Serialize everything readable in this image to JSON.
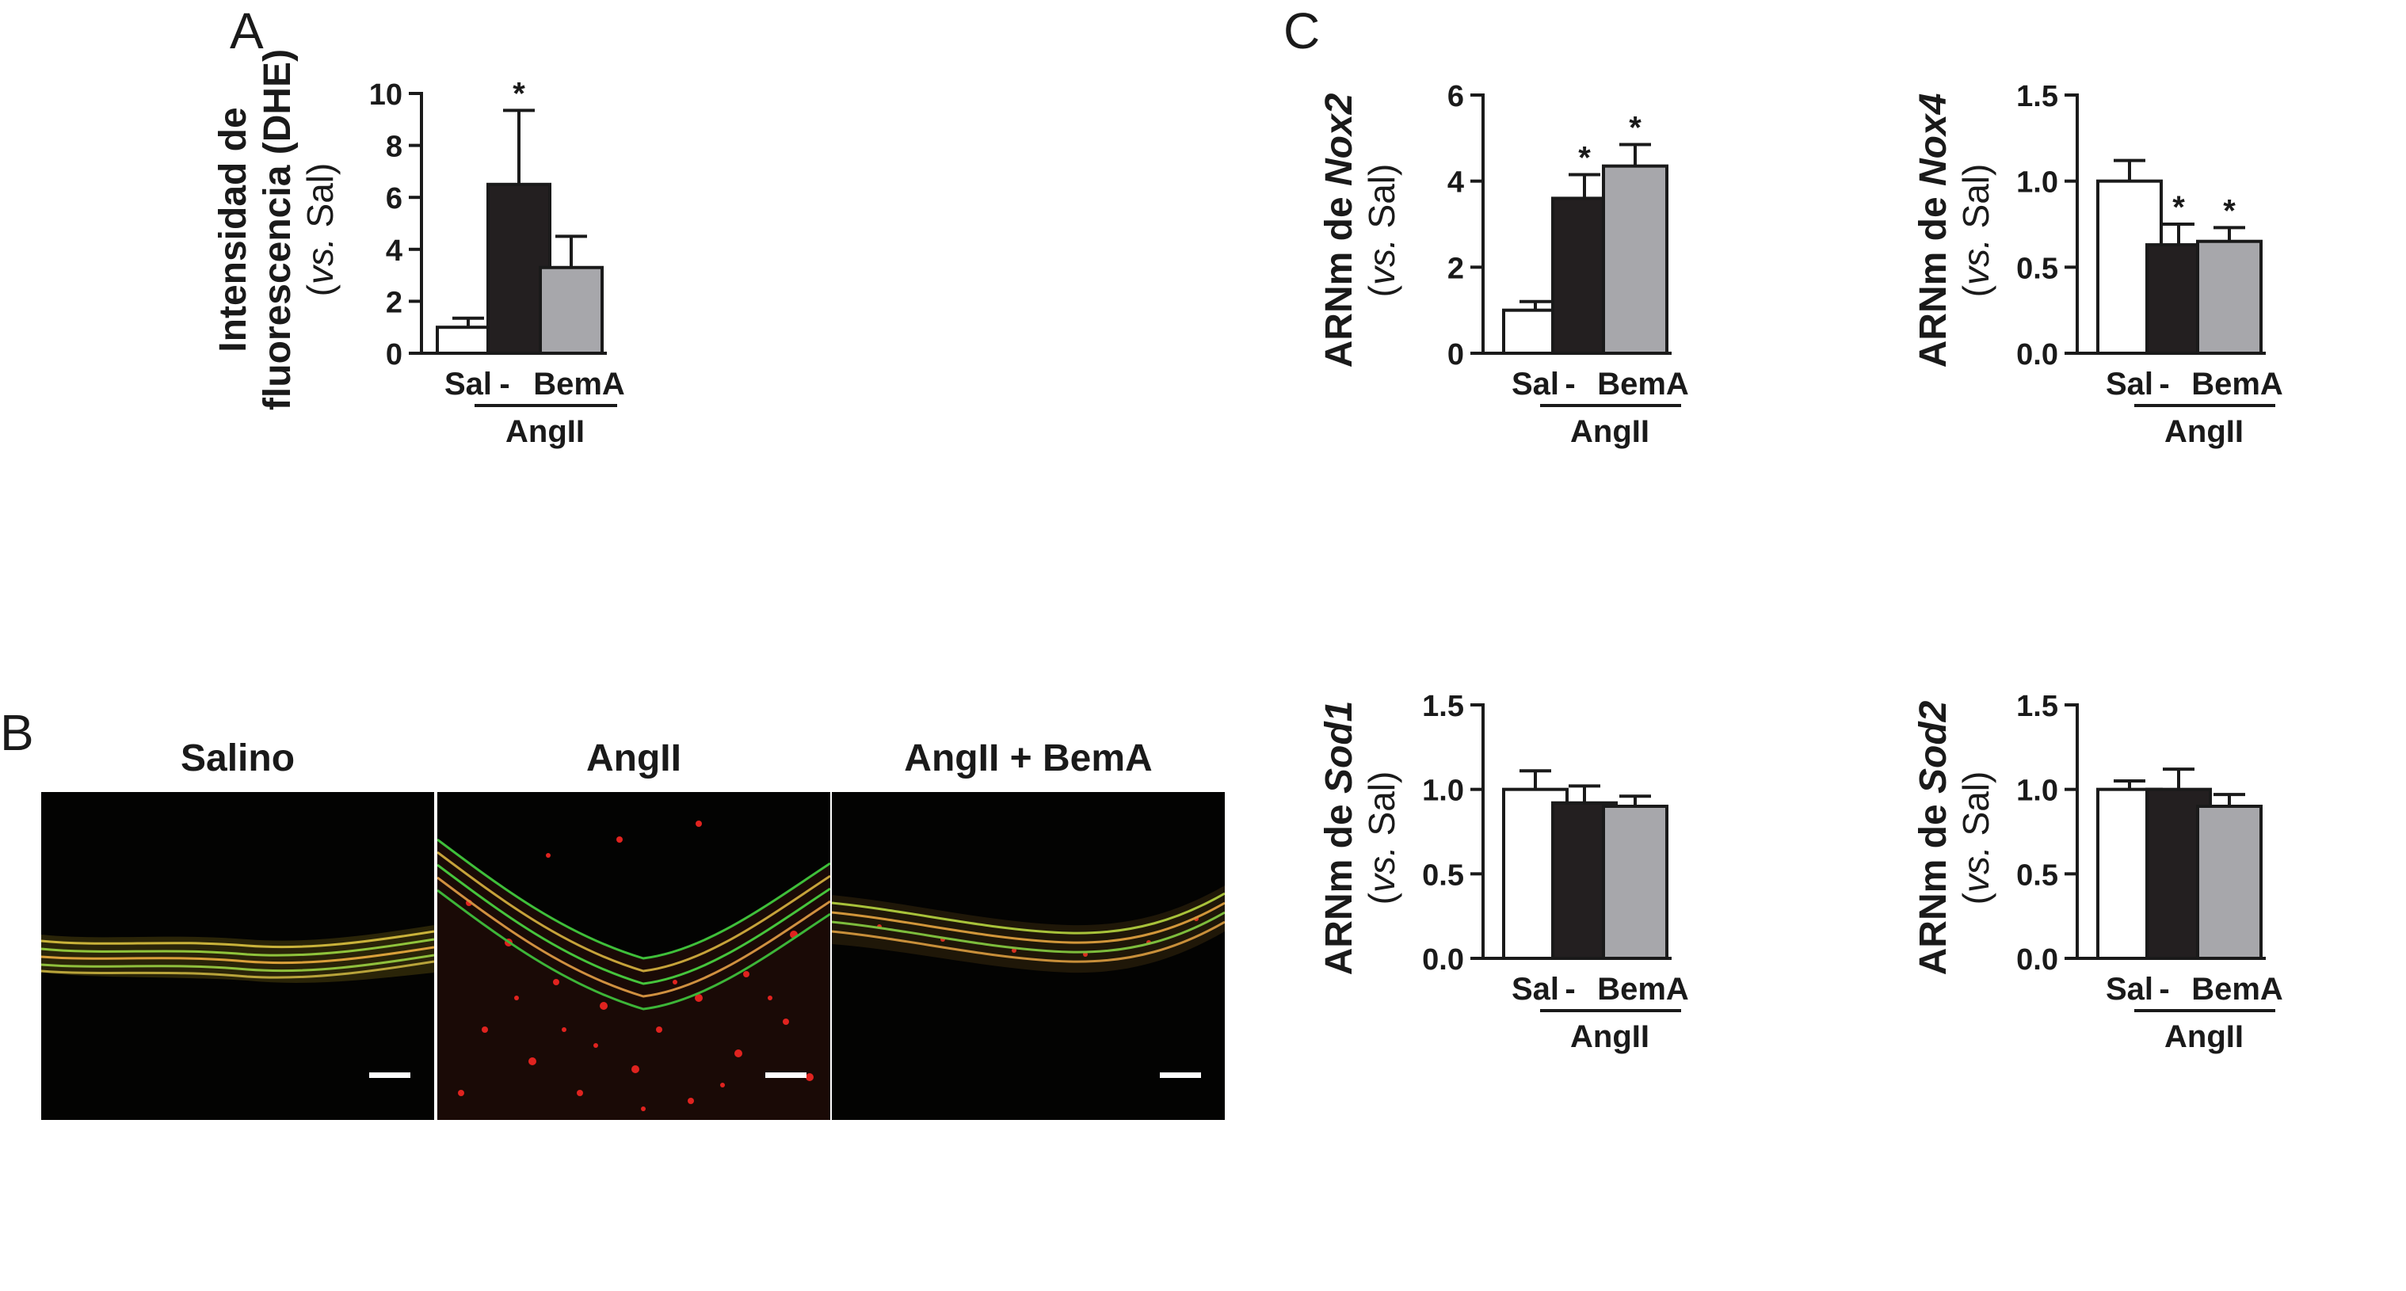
{
  "panels": {
    "a": "A",
    "b": "B",
    "c": "C"
  },
  "colors": {
    "sal": "#ffffff",
    "angii": "#231f20",
    "bema": "#a7a7ab",
    "axis": "#1a1a1a"
  },
  "images": [
    {
      "title": "Salino"
    },
    {
      "title": "AngII"
    },
    {
      "title": "AngII + BemA"
    }
  ],
  "chart_data": [
    {
      "type": "bar",
      "panel": "A",
      "ylabel_line1": "Intensidad de",
      "ylabel_line2": "fluorescencia (DHE)",
      "ylabel_line3_italic": "vs.",
      "ylabel_line3_rest": " Sal)",
      "ylabel_line3_open": "(",
      "categories": [
        "Sal",
        "-",
        "BemA"
      ],
      "group_label": "AngII",
      "values": [
        1.0,
        6.5,
        3.3
      ],
      "errors": [
        0.35,
        2.85,
        1.2
      ],
      "significance": [
        "",
        "*",
        ""
      ],
      "ylim": [
        0,
        10
      ],
      "yticks": [
        "0",
        "2",
        "4",
        "6",
        "8",
        "10"
      ]
    },
    {
      "type": "bar",
      "panel": "C",
      "ylabel_prefix": "ARNm de ",
      "gene": "Nox2",
      "ylabel_line2_open": "(",
      "ylabel_line2_italic": "vs.",
      "ylabel_line2_rest": " Sal)",
      "categories": [
        "Sal",
        "-",
        "BemA"
      ],
      "group_label": "AngII",
      "values": [
        1.0,
        3.6,
        4.35
      ],
      "errors": [
        0.2,
        0.55,
        0.5
      ],
      "significance": [
        "",
        "*",
        "*"
      ],
      "ylim": [
        0,
        6
      ],
      "yticks": [
        "0",
        "2",
        "4",
        "6"
      ]
    },
    {
      "type": "bar",
      "panel": "C",
      "ylabel_prefix": "ARNm de ",
      "gene": "Nox4",
      "ylabel_line2_open": "(",
      "ylabel_line2_italic": "vs.",
      "ylabel_line2_rest": " Sal)",
      "categories": [
        "Sal",
        "-",
        "BemA"
      ],
      "group_label": "AngII",
      "values": [
        1.0,
        0.63,
        0.65
      ],
      "errors": [
        0.12,
        0.12,
        0.08
      ],
      "significance": [
        "",
        "*",
        "*"
      ],
      "ylim": [
        0,
        1.5
      ],
      "yticks": [
        "0.0",
        "0.5",
        "1.0",
        "1.5"
      ]
    },
    {
      "type": "bar",
      "panel": "C",
      "ylabel_prefix": "ARNm de ",
      "gene": "Sod1",
      "ylabel_line2_open": "(",
      "ylabel_line2_italic": "vs.",
      "ylabel_line2_rest": " Sal)",
      "categories": [
        "Sal",
        "-",
        "BemA"
      ],
      "group_label": "AngII",
      "values": [
        1.0,
        0.92,
        0.9
      ],
      "errors": [
        0.11,
        0.1,
        0.06
      ],
      "significance": [
        "",
        "",
        ""
      ],
      "ylim": [
        0,
        1.5
      ],
      "yticks": [
        "0.0",
        "0.5",
        "1.0",
        "1.5"
      ]
    },
    {
      "type": "bar",
      "panel": "C",
      "ylabel_prefix": "ARNm de ",
      "gene": "Sod2",
      "ylabel_line2_open": "(",
      "ylabel_line2_italic": "vs.",
      "ylabel_line2_rest": " Sal)",
      "categories": [
        "Sal",
        "-",
        "BemA"
      ],
      "group_label": "AngII",
      "values": [
        1.0,
        1.0,
        0.9
      ],
      "errors": [
        0.05,
        0.12,
        0.07
      ],
      "significance": [
        "",
        "",
        ""
      ],
      "ylim": [
        0,
        1.5
      ],
      "yticks": [
        "0.0",
        "0.5",
        "1.0",
        "1.5"
      ]
    }
  ]
}
